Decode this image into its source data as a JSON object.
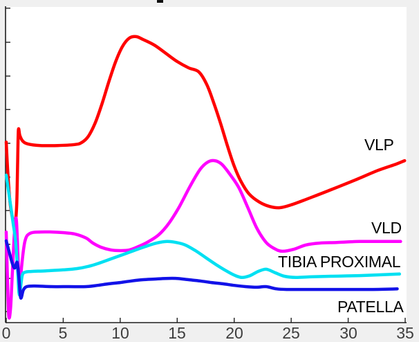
{
  "figure": {
    "background_color": "#f0f0f0",
    "plot_background_color": "#ffffff",
    "axis_color": "#1f1f1f",
    "tick_label_color": "#3d3d3d",
    "title_fragment_visible": true
  },
  "chart_data": {
    "type": "line",
    "title": "",
    "xlabel": "",
    "ylabel": "",
    "xlim": [
      0,
      35
    ],
    "x_ticks": [
      0,
      5,
      10,
      15,
      20,
      25,
      30,
      35
    ],
    "x_tick_labels": [
      "0",
      "5",
      "10",
      "15",
      "20",
      "25",
      "30",
      "35"
    ],
    "y_tick_labels_visible": false,
    "y_unit_note": "y values are percent of visible plot height; y-axis tick labels are cropped out of the image",
    "y_ticks_norm": [
      3.5,
      14.0,
      24.8,
      35.5,
      46.1,
      56.8,
      67.5,
      78.1,
      88.8,
      99.6
    ],
    "grid": false,
    "legend_style": "inline text labels at right side of plot",
    "series": [
      {
        "name": "VLP",
        "color": "#ff0000",
        "points": [
          [
            0,
            57.2
          ],
          [
            0.15,
            46.9
          ],
          [
            0.35,
            37.5
          ],
          [
            0.6,
            32.5
          ],
          [
            0.78,
            31.4
          ],
          [
            0.92,
            37.5
          ],
          [
            1.0,
            50.7
          ],
          [
            1.07,
            61.0
          ],
          [
            1.2,
            59.2
          ],
          [
            1.45,
            57.5
          ],
          [
            1.9,
            56.6
          ],
          [
            3,
            56.1
          ],
          [
            4.5,
            56.1
          ],
          [
            6,
            56.4
          ],
          [
            6.6,
            57.0
          ],
          [
            7.2,
            59.0
          ],
          [
            7.8,
            63.2
          ],
          [
            8.4,
            69.3
          ],
          [
            9,
            76.3
          ],
          [
            9.6,
            82.7
          ],
          [
            10.2,
            87.5
          ],
          [
            10.8,
            90.1
          ],
          [
            11.4,
            90.6
          ],
          [
            12,
            89.7
          ],
          [
            13,
            87.9
          ],
          [
            14,
            85.3
          ],
          [
            15,
            82.7
          ],
          [
            16,
            80.7
          ],
          [
            16.9,
            79.4
          ],
          [
            17.6,
            75.4
          ],
          [
            18.2,
            69.7
          ],
          [
            18.8,
            63.2
          ],
          [
            19.4,
            56.1
          ],
          [
            20,
            49.6
          ],
          [
            20.6,
            44.7
          ],
          [
            21.3,
            40.8
          ],
          [
            22.2,
            38.2
          ],
          [
            23.1,
            36.8
          ],
          [
            24,
            36.4
          ],
          [
            25,
            37.3
          ],
          [
            26.5,
            39.3
          ],
          [
            28.5,
            42.1
          ],
          [
            30.5,
            45.0
          ],
          [
            32.6,
            48.2
          ],
          [
            34.2,
            50.2
          ],
          [
            34.95,
            51.3
          ]
        ]
      },
      {
        "name": "VLD",
        "color": "#ff00ff",
        "points": [
          [
            0,
            28.7
          ],
          [
            0.1,
            15.6
          ],
          [
            0.22,
            2.2
          ],
          [
            0.38,
            4.6
          ],
          [
            0.55,
            16.7
          ],
          [
            0.72,
            28.5
          ],
          [
            0.88,
            32.9
          ],
          [
            1.02,
            22.1
          ],
          [
            1.15,
            9.4
          ],
          [
            1.35,
            17.8
          ],
          [
            1.65,
            25.9
          ],
          [
            2.1,
            28.3
          ],
          [
            3,
            28.7
          ],
          [
            4,
            28.7
          ],
          [
            5,
            28.5
          ],
          [
            6,
            28.1
          ],
          [
            7,
            26.8
          ],
          [
            7.6,
            25.2
          ],
          [
            8.3,
            23.9
          ],
          [
            9.2,
            23.0
          ],
          [
            10,
            22.8
          ],
          [
            10.8,
            23.0
          ],
          [
            11.6,
            24.1
          ],
          [
            12.5,
            25.7
          ],
          [
            13.4,
            27.9
          ],
          [
            14.3,
            31.6
          ],
          [
            15.2,
            36.8
          ],
          [
            16.1,
            43.0
          ],
          [
            17,
            48.5
          ],
          [
            17.7,
            50.9
          ],
          [
            18.3,
            51.3
          ],
          [
            18.9,
            50.2
          ],
          [
            19.6,
            47.1
          ],
          [
            20.4,
            42.8
          ],
          [
            21.2,
            36.4
          ],
          [
            22,
            29.8
          ],
          [
            22.8,
            25.4
          ],
          [
            23.5,
            23.5
          ],
          [
            24.2,
            22.6
          ],
          [
            25.2,
            23.2
          ],
          [
            26.3,
            24.6
          ],
          [
            27.5,
            25.2
          ],
          [
            29,
            25.4
          ],
          [
            31,
            25.7
          ],
          [
            33,
            25.7
          ],
          [
            34.6,
            25.7
          ]
        ]
      },
      {
        "name": "TIBIA PROXIMAL",
        "color": "#00e0f2",
        "points": [
          [
            0,
            46.7
          ],
          [
            0.3,
            39.3
          ],
          [
            0.6,
            31.6
          ],
          [
            0.82,
            25.9
          ],
          [
            1.0,
            16.7
          ],
          [
            1.15,
            8.8
          ],
          [
            1.4,
            14.9
          ],
          [
            1.7,
            16.0
          ],
          [
            2.2,
            16.2
          ],
          [
            3.5,
            16.4
          ],
          [
            5,
            16.7
          ],
          [
            6.2,
            17.1
          ],
          [
            7.2,
            17.8
          ],
          [
            8.2,
            18.9
          ],
          [
            9.2,
            20.2
          ],
          [
            10.2,
            21.5
          ],
          [
            11.2,
            22.8
          ],
          [
            12.2,
            24.1
          ],
          [
            13.2,
            25.2
          ],
          [
            14.1,
            25.7
          ],
          [
            14.9,
            25.4
          ],
          [
            15.7,
            24.6
          ],
          [
            16.6,
            22.8
          ],
          [
            17.5,
            20.6
          ],
          [
            18.4,
            18.4
          ],
          [
            19.3,
            16.4
          ],
          [
            20.1,
            14.9
          ],
          [
            20.7,
            14.3
          ],
          [
            21.4,
            14.9
          ],
          [
            22.1,
            16.2
          ],
          [
            22.8,
            16.9
          ],
          [
            23.6,
            15.8
          ],
          [
            24.4,
            14.7
          ],
          [
            25.4,
            14.3
          ],
          [
            26.6,
            14.5
          ],
          [
            28.5,
            14.7
          ],
          [
            31,
            14.9
          ],
          [
            34.5,
            15.4
          ]
        ]
      },
      {
        "name": "PATELLA",
        "color": "#1212e8",
        "points": [
          [
            0,
            25.9
          ],
          [
            0.3,
            21.9
          ],
          [
            0.55,
            18.6
          ],
          [
            0.75,
            17.3
          ],
          [
            0.95,
            19.1
          ],
          [
            1.1,
            14.9
          ],
          [
            1.27,
            7.9
          ],
          [
            1.5,
            10.3
          ],
          [
            1.8,
            11.4
          ],
          [
            2.5,
            11.6
          ],
          [
            4,
            11.4
          ],
          [
            5.5,
            11.4
          ],
          [
            7,
            11.4
          ],
          [
            8,
            11.8
          ],
          [
            9,
            12.3
          ],
          [
            10,
            12.7
          ],
          [
            11,
            13.2
          ],
          [
            12,
            13.6
          ],
          [
            13,
            13.8
          ],
          [
            14,
            14.0
          ],
          [
            15,
            14.0
          ],
          [
            16,
            13.6
          ],
          [
            17,
            13.2
          ],
          [
            18,
            12.7
          ],
          [
            19,
            12.3
          ],
          [
            20,
            11.8
          ],
          [
            21,
            11.4
          ],
          [
            22,
            11.2
          ],
          [
            22.8,
            11.4
          ],
          [
            23.7,
            10.7
          ],
          [
            24.6,
            10.5
          ],
          [
            26,
            10.5
          ],
          [
            28,
            10.5
          ],
          [
            30,
            10.5
          ],
          [
            32,
            10.5
          ],
          [
            34.3,
            10.7
          ]
        ]
      }
    ]
  }
}
